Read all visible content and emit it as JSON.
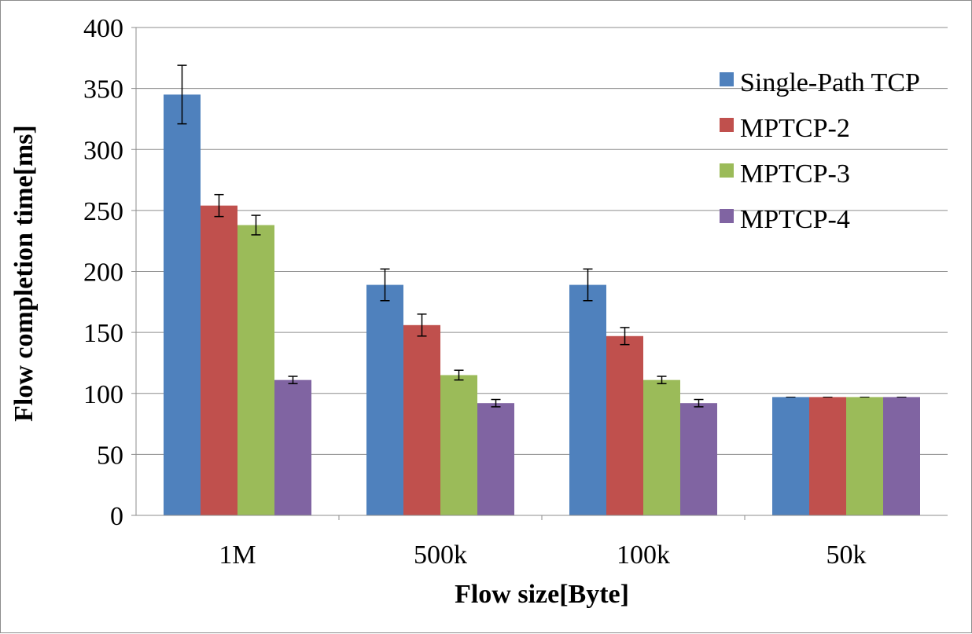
{
  "chart_data": {
    "type": "bar",
    "title": "",
    "xlabel": "Flow size[Byte]",
    "ylabel": "Flow completion time[ms]",
    "ylim": [
      0,
      400
    ],
    "yticks": [
      "0",
      "50",
      "100",
      "150",
      "200",
      "250",
      "300",
      "350",
      "400"
    ],
    "grid": true,
    "legend_position": "top-right",
    "categories": [
      "1M",
      "500k",
      "100k",
      "50k"
    ],
    "series": [
      {
        "name": "Single-Path TCP",
        "color": "#4f81bd",
        "values": [
          345,
          189,
          189,
          97
        ],
        "errors": [
          24,
          13,
          13,
          0
        ]
      },
      {
        "name": "MPTCP-2",
        "color": "#c0504d",
        "values": [
          254,
          156,
          147,
          97
        ],
        "errors": [
          9,
          9,
          7,
          0
        ]
      },
      {
        "name": "MPTCP-3",
        "color": "#9bbb59",
        "values": [
          238,
          115,
          111,
          97
        ],
        "errors": [
          8,
          4,
          3,
          0
        ]
      },
      {
        "name": "MPTCP-4",
        "color": "#8064a2",
        "values": [
          111,
          92,
          92,
          97
        ],
        "errors": [
          3,
          3,
          3,
          0
        ]
      }
    ]
  }
}
